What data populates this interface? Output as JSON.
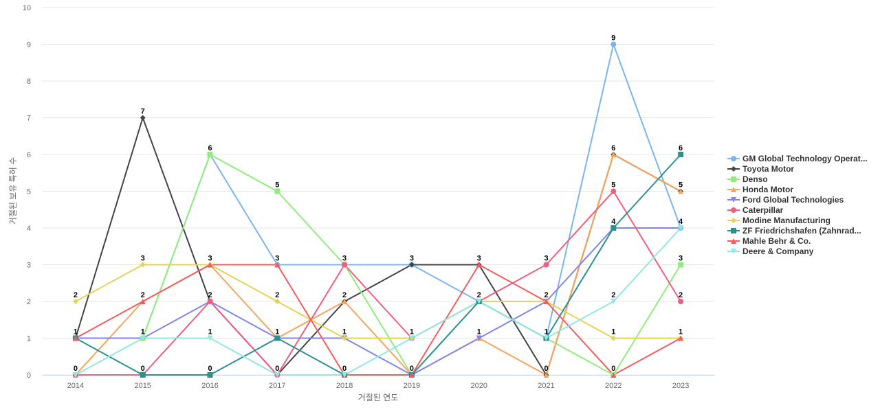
{
  "chart_data": {
    "type": "line",
    "title": "",
    "xlabel": "거절된 연도",
    "ylabel": "거절된 보유 특허 수",
    "x": [
      "2014",
      "2015",
      "2016",
      "2017",
      "2018",
      "2019",
      "2020",
      "2021",
      "2022",
      "2023"
    ],
    "ylim": [
      0,
      10
    ],
    "yticks": [
      "0",
      "1",
      "2",
      "3",
      "4",
      "5",
      "6",
      "7",
      "8",
      "9",
      "10"
    ],
    "grid": true,
    "legend_position": "right",
    "series": [
      {
        "name": "GM Global Technology Operat...",
        "color": "#7cb5ec",
        "marker": "circle",
        "values": [
          1,
          1,
          6,
          3,
          3,
          3,
          2,
          1,
          9,
          4
        ]
      },
      {
        "name": "Toyota Motor",
        "color": "#434348",
        "marker": "diamond",
        "values": [
          1,
          7,
          2,
          0,
          2,
          3,
          3,
          0,
          6,
          5
        ]
      },
      {
        "name": "Denso",
        "color": "#90ed7d",
        "marker": "square",
        "values": [
          1,
          1,
          6,
          5,
          3,
          0,
          2,
          1,
          0,
          3
        ]
      },
      {
        "name": "Honda Motor",
        "color": "#f7a35c",
        "marker": "triangle",
        "values": [
          0,
          2,
          3,
          1,
          2,
          0,
          1,
          0,
          6,
          5
        ]
      },
      {
        "name": "Ford Global Technologies",
        "color": "#8085e9",
        "marker": "triangle-down",
        "values": [
          1,
          1,
          2,
          1,
          1,
          0,
          1,
          2,
          4,
          4
        ]
      },
      {
        "name": "Caterpillar",
        "color": "#f15c80",
        "marker": "circle",
        "values": [
          0,
          0,
          2,
          0,
          3,
          1,
          2,
          3,
          5,
          2
        ]
      },
      {
        "name": "Modine Manufacturing",
        "color": "#e4d354",
        "marker": "diamond",
        "values": [
          2,
          3,
          3,
          2,
          1,
          1,
          2,
          2,
          1,
          1
        ]
      },
      {
        "name": "ZF Friedrichshafen (Zahnrad...",
        "color": "#2b908f",
        "marker": "square",
        "values": [
          1,
          0,
          0,
          1,
          0,
          0,
          2,
          1,
          4,
          6
        ]
      },
      {
        "name": "Mahle Behr & Co.",
        "color": "#f45b5b",
        "marker": "triangle",
        "values": [
          1,
          2,
          3,
          3,
          0,
          0,
          3,
          2,
          0,
          1
        ]
      },
      {
        "name": "Deere & Company",
        "color": "#91e8e1",
        "marker": "triangle-down",
        "values": [
          0,
          1,
          1,
          0,
          0,
          1,
          2,
          1,
          2,
          4
        ]
      }
    ],
    "data_labels": [
      {
        "x": "2014",
        "value": 2
      },
      {
        "x": "2014",
        "value": 1
      },
      {
        "x": "2014",
        "value": 0
      },
      {
        "x": "2015",
        "value": 7
      },
      {
        "x": "2015",
        "value": 3
      },
      {
        "x": "2015",
        "value": 2
      },
      {
        "x": "2015",
        "value": 1
      },
      {
        "x": "2015",
        "value": 0
      },
      {
        "x": "2016",
        "value": 6
      },
      {
        "x": "2016",
        "value": 3
      },
      {
        "x": "2016",
        "value": 2
      },
      {
        "x": "2016",
        "value": 1
      },
      {
        "x": "2016",
        "value": 0
      },
      {
        "x": "2017",
        "value": 5
      },
      {
        "x": "2017",
        "value": 3
      },
      {
        "x": "2017",
        "value": 2
      },
      {
        "x": "2017",
        "value": 1
      },
      {
        "x": "2017",
        "value": 0
      },
      {
        "x": "2018",
        "value": 3
      },
      {
        "x": "2018",
        "value": 2
      },
      {
        "x": "2018",
        "value": 1
      },
      {
        "x": "2018",
        "value": 0
      },
      {
        "x": "2019",
        "value": 3
      },
      {
        "x": "2019",
        "value": 1
      },
      {
        "x": "2019",
        "value": 0
      },
      {
        "x": "2020",
        "value": 3
      },
      {
        "x": "2020",
        "value": 2
      },
      {
        "x": "2020",
        "value": 1
      },
      {
        "x": "2021",
        "value": 3
      },
      {
        "x": "2021",
        "value": 2
      },
      {
        "x": "2021",
        "value": 1
      },
      {
        "x": "2021",
        "value": 0
      },
      {
        "x": "2022",
        "value": 9
      },
      {
        "x": "2022",
        "value": 6
      },
      {
        "x": "2022",
        "value": 5
      },
      {
        "x": "2022",
        "value": 4
      },
      {
        "x": "2022",
        "value": 2
      },
      {
        "x": "2022",
        "value": 1
      },
      {
        "x": "2022",
        "value": 0
      },
      {
        "x": "2023",
        "value": 6
      },
      {
        "x": "2023",
        "value": 5
      },
      {
        "x": "2023",
        "value": 4
      },
      {
        "x": "2023",
        "value": 3
      },
      {
        "x": "2023",
        "value": 2
      },
      {
        "x": "2023",
        "value": 1
      }
    ]
  }
}
